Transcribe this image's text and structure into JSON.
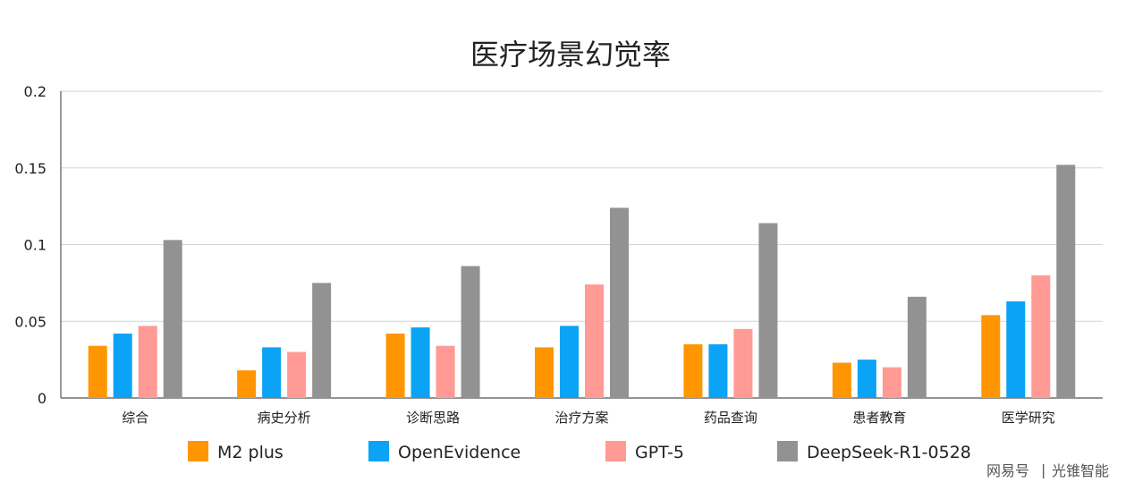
{
  "chart_data": {
    "type": "bar",
    "title": "医疗场景幻觉率",
    "categories": [
      "综合",
      "病史分析",
      "诊断思路",
      "治疗方案",
      "药品查询",
      "患者教育",
      "医学研究"
    ],
    "series": [
      {
        "name": "M2 plus",
        "color": "#FF9500",
        "values": [
          0.034,
          0.018,
          0.042,
          0.033,
          0.035,
          0.023,
          0.054
        ]
      },
      {
        "name": "OpenEvidence",
        "color": "#0AA3F5",
        "values": [
          0.042,
          0.033,
          0.046,
          0.047,
          0.035,
          0.025,
          0.063
        ]
      },
      {
        "name": "GPT-5",
        "color": "#FF9A94",
        "values": [
          0.047,
          0.03,
          0.034,
          0.074,
          0.045,
          0.02,
          0.08
        ]
      },
      {
        "name": "DeepSeek-R1-0528",
        "color": "#929292",
        "values": [
          0.103,
          0.075,
          0.086,
          0.124,
          0.114,
          0.066,
          0.152
        ]
      }
    ],
    "ylim": [
      0,
      0.2
    ],
    "yticks": [
      "0",
      "0.05",
      "0.1",
      "0.15",
      "0.2"
    ],
    "ytick_values": [
      0,
      0.05,
      0.1,
      0.15,
      0.2
    ],
    "grid": true,
    "legend_position": "bottom"
  },
  "watermark": {
    "source": "网易号",
    "separator": "|",
    "author": "光锥智能"
  }
}
